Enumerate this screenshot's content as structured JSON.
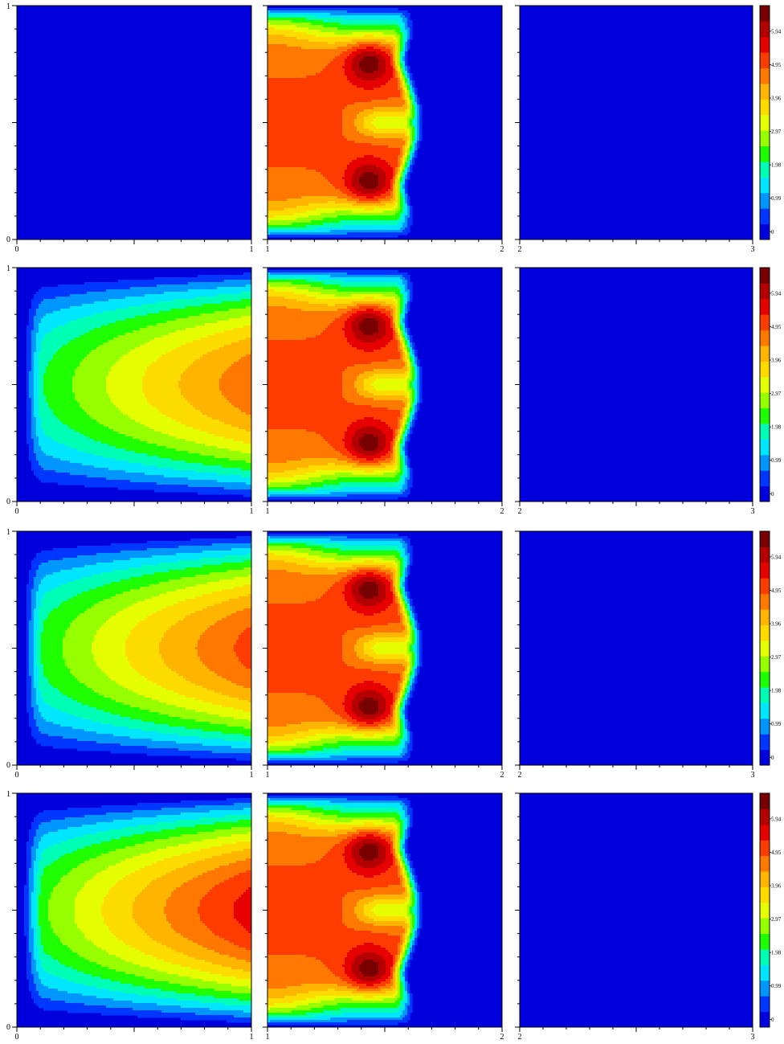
{
  "chart_data": {
    "type": "heatmap",
    "colorbar": {
      "ticks": [
        "0",
        "0.99",
        "1.98",
        "2.97",
        "3.96",
        "4.95",
        "5.94"
      ],
      "tick_values": [
        0,
        0.99,
        1.98,
        2.97,
        3.96,
        4.95,
        5.94
      ],
      "range": [
        0,
        6.93
      ],
      "levels": 14,
      "colors": [
        "#0000dc",
        "#0037ff",
        "#0096ff",
        "#00e6ff",
        "#00ffb4",
        "#1eff00",
        "#96ff00",
        "#e6ff00",
        "#ffdc00",
        "#ffb400",
        "#ff7800",
        "#ff3c00",
        "#e60000",
        "#b40000",
        "#780000"
      ]
    },
    "background_color": "#0000dc",
    "rows": [
      {
        "panels": [
          {
            "xlim": [
              0,
              1
            ],
            "ylim": [
              0,
              1
            ],
            "x_ticks": [
              "0",
              "1"
            ],
            "y_ticks": [
              "0",
              "1"
            ],
            "field": "none"
          },
          {
            "xlim": [
              1,
              2
            ],
            "ylim": [
              0,
              1
            ],
            "x_ticks": [
              "1",
              "2"
            ],
            "y_ticks": [
              "",
              ""
            ],
            "field": "double-hotspot",
            "hotspot_peak": 6.9,
            "plateau": 5.1
          },
          {
            "xlim": [
              2,
              3
            ],
            "ylim": [
              0,
              1
            ],
            "x_ticks": [
              "2",
              "3"
            ],
            "y_ticks": [
              "",
              ""
            ],
            "field": "none"
          }
        ]
      },
      {
        "panels": [
          {
            "xlim": [
              0,
              1
            ],
            "ylim": [
              0,
              1
            ],
            "x_ticks": [
              "0",
              "1"
            ],
            "y_ticks": [
              "0",
              "1"
            ],
            "field": "channel",
            "peak_at_outlet": 5.0
          },
          {
            "xlim": [
              1,
              2
            ],
            "ylim": [
              0,
              1
            ],
            "x_ticks": [
              "1",
              "2"
            ],
            "y_ticks": [
              "",
              ""
            ],
            "field": "double-hotspot",
            "hotspot_peak": 6.9,
            "plateau": 5.1
          },
          {
            "xlim": [
              2,
              3
            ],
            "ylim": [
              0,
              1
            ],
            "x_ticks": [
              "2",
              "3"
            ],
            "y_ticks": [
              "",
              ""
            ],
            "field": "none"
          }
        ]
      },
      {
        "panels": [
          {
            "xlim": [
              0,
              1
            ],
            "ylim": [
              0,
              1
            ],
            "x_ticks": [
              "0",
              "1"
            ],
            "y_ticks": [
              "0",
              "1"
            ],
            "field": "channel",
            "peak_at_outlet": 5.3
          },
          {
            "xlim": [
              1,
              2
            ],
            "ylim": [
              0,
              1
            ],
            "x_ticks": [
              "1",
              "2"
            ],
            "y_ticks": [
              "",
              ""
            ],
            "field": "double-hotspot",
            "hotspot_peak": 6.9,
            "plateau": 5.1
          },
          {
            "xlim": [
              2,
              3
            ],
            "ylim": [
              0,
              1
            ],
            "x_ticks": [
              "2",
              "3"
            ],
            "y_ticks": [
              "",
              ""
            ],
            "field": "none"
          }
        ]
      },
      {
        "panels": [
          {
            "xlim": [
              0,
              1
            ],
            "ylim": [
              0,
              1
            ],
            "x_ticks": [
              "0",
              "1"
            ],
            "y_ticks": [
              "0",
              "1"
            ],
            "field": "channel",
            "peak_at_outlet": 5.8
          },
          {
            "xlim": [
              1,
              2
            ],
            "ylim": [
              0,
              1
            ],
            "x_ticks": [
              "1",
              "2"
            ],
            "y_ticks": [
              "",
              ""
            ],
            "field": "double-hotspot",
            "hotspot_peak": 6.9,
            "plateau": 5.1
          },
          {
            "xlim": [
              2,
              3
            ],
            "ylim": [
              0,
              1
            ],
            "x_ticks": [
              "2",
              "3"
            ],
            "y_ticks": [
              "",
              ""
            ],
            "field": "none"
          }
        ]
      }
    ]
  }
}
